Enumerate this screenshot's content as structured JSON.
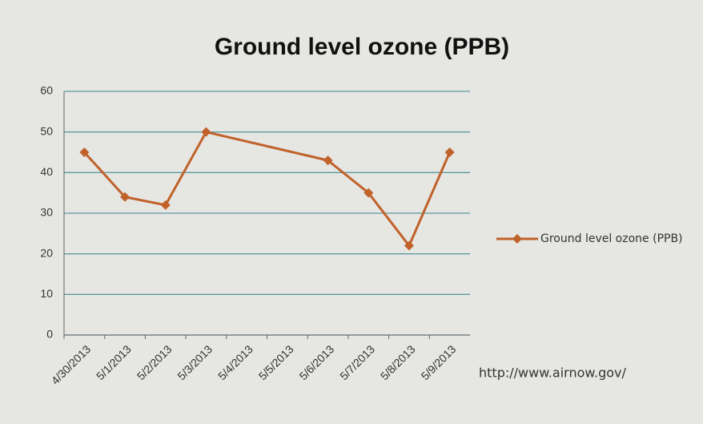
{
  "chart_data": {
    "type": "line",
    "title": "Ground level ozone (PPB)",
    "categories": [
      "4/30/2013",
      "5/1/2013",
      "5/2/2013",
      "5/3/2013",
      "5/4/2013",
      "5/5/2013",
      "5/6/2013",
      "5/7/2013",
      "5/8/2013",
      "5/9/2013"
    ],
    "series": [
      {
        "name": "Ground level ozone (PPB)",
        "color": "#c0622a",
        "values": [
          45,
          34,
          32,
          50,
          null,
          null,
          43,
          35,
          22,
          45
        ]
      }
    ],
    "connect_gaps": true,
    "ylim": [
      0,
      60
    ],
    "yticks": [
      0,
      10,
      20,
      30,
      40,
      50,
      60
    ],
    "grid": true,
    "legend": "right",
    "source": "http://www.airnow.gov/"
  }
}
